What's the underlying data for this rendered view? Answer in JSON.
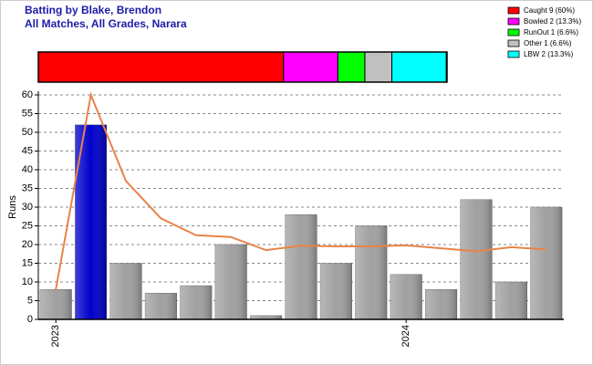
{
  "chart_data": [
    {
      "type": "strip",
      "series": [
        {
          "name": "Caught 9 (60%)",
          "color": "#ff0000",
          "values": [
            60
          ]
        },
        {
          "name": "Bowled 2 (13.3%)",
          "color": "#ff00ff",
          "values": [
            13.3
          ]
        },
        {
          "name": "RunOut 1 (6.6%)",
          "color": "#00ff00",
          "values": [
            6.6
          ]
        },
        {
          "name": "Other 1 (6.6%)",
          "color": "#c0c0c0",
          "values": [
            6.6
          ]
        },
        {
          "name": "LBW 2 (13.3%)",
          "color": "#00ffff",
          "values": [
            13.3
          ]
        }
      ]
    },
    {
      "type": "bar",
      "title": "Batting by Blake, Brendon",
      "subtitle": "All Matches, All Grades, Narara",
      "y_label": "Runs",
      "categories": [
        "2023",
        null,
        null,
        null,
        null,
        null,
        null,
        null,
        null,
        null,
        "2024",
        null,
        null,
        null,
        null
      ],
      "values": [
        8,
        52,
        15,
        7,
        9,
        20,
        1,
        28,
        15,
        25,
        12,
        8,
        32,
        10,
        30
      ],
      "colors": [
        "#a0a0a0",
        "#0000cc",
        "#a0a0a0",
        "#a0a0a0",
        "#a0a0a0",
        "#a0a0a0",
        "#a0a0a0",
        "#a0a0a0",
        "#a0a0a0",
        "#a0a0a0",
        "#a0a0a0",
        "#a0a0a0",
        "#a0a0a0",
        "#a0a0a0",
        "#a0a0a0"
      ],
      "line": {
        "color": "#e8834a",
        "values": [
          8,
          60,
          37,
          27,
          22.5,
          22,
          18.5,
          19.7,
          19.5,
          19.5,
          19.8,
          19,
          18.2,
          19.3,
          18.7
        ]
      },
      "ylim": [
        0,
        60
      ],
      "yticks": [
        0,
        5,
        10,
        15,
        20,
        25,
        30,
        35,
        40,
        45,
        50,
        55,
        60
      ],
      "grid": true
    }
  ]
}
